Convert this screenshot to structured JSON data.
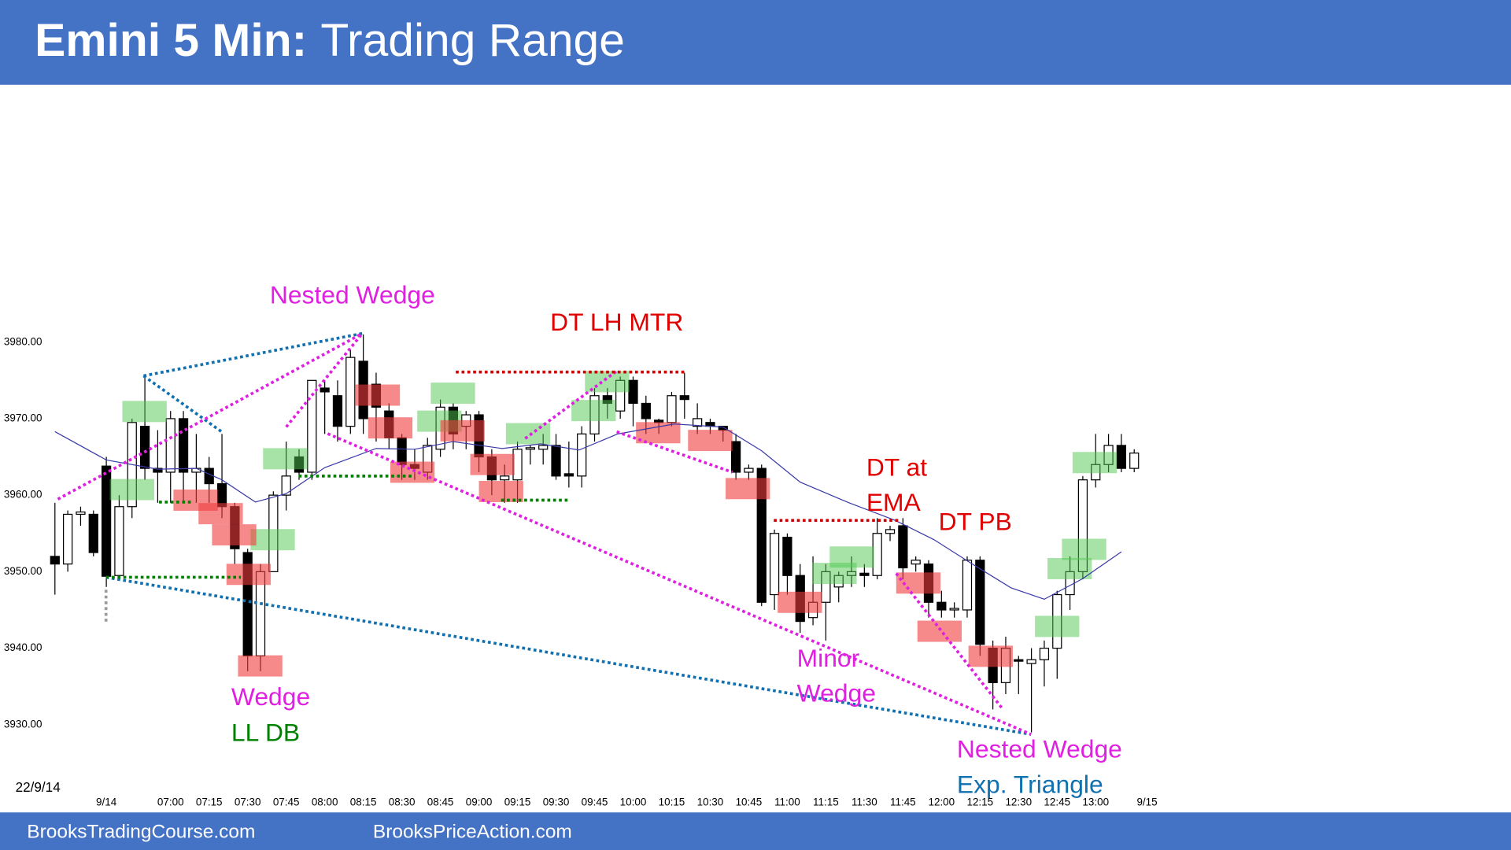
{
  "header": {
    "title": "Emini 5 Min:",
    "subtitle": "Trading Range"
  },
  "footer": {
    "left": "BrooksTradingCourse.com",
    "right": "BrooksPriceAction.com"
  },
  "chart_data": {
    "type": "candlestick",
    "date_label": "22/9/14",
    "x": [
      375,
      380,
      385,
      390,
      395,
      400,
      405,
      410,
      415,
      420,
      425,
      430,
      435,
      440,
      445,
      450,
      455,
      460,
      465,
      470,
      475,
      480,
      485,
      490,
      495,
      500,
      505,
      510,
      515,
      520,
      525,
      530,
      535,
      540,
      545,
      550,
      555,
      560,
      565,
      570,
      575,
      580,
      585,
      590,
      595,
      600,
      605,
      610,
      615,
      620,
      625,
      630,
      635,
      640,
      645,
      650,
      655,
      660,
      665,
      670,
      675,
      680,
      685,
      690,
      695,
      700,
      705,
      710,
      715,
      720,
      725,
      730,
      735,
      740,
      745,
      750,
      755,
      760,
      765,
      770,
      775,
      780,
      785,
      790,
      795
    ],
    "open": [
      3952,
      3951,
      3957.5,
      3957.5,
      3963.8,
      3949.5,
      3958.5,
      3969,
      3963.5,
      3963,
      3970,
      3963,
      3963.5,
      3961.5,
      3958.5,
      3952.5,
      3939,
      3950,
      3960,
      3965,
      3963,
      3974,
      3973,
      3969,
      3977.5,
      3974.5,
      3971,
      3967.5,
      3964,
      3963,
      3966,
      3971.5,
      3969,
      3970.5,
      3965,
      3962,
      3962,
      3966,
      3966,
      3966.5,
      3962.8,
      3962.5,
      3968,
      3973,
      3971,
      3975,
      3972,
      3969.8,
      3969.5,
      3973,
      3969,
      3969.5,
      3969,
      3967,
      3963,
      3963.5,
      3947,
      3954.5,
      3949.5,
      3944,
      3946,
      3948,
      3949.5,
      3949.8,
      3949.5,
      3955,
      3956,
      3951,
      3951,
      3946,
      3945,
      3945,
      3951.5,
      3940,
      3935.5,
      3938.5,
      3938,
      3938.5,
      3940,
      3947,
      3950,
      3962,
      3964,
      3966.5,
      3963.5
    ],
    "high": [
      3959,
      3958,
      3958.5,
      3958,
      3965,
      3960,
      3970,
      3975.5,
      3968.5,
      3971,
      3971,
      3968,
      3965,
      3968,
      3959,
      3953,
      3951,
      3960.5,
      3967,
      3966,
      3975,
      3975,
      3975,
      3979,
      3981,
      3976,
      3972,
      3968,
      3966,
      3967.5,
      3972.5,
      3972,
      3971,
      3971,
      3966,
      3964,
      3967,
      3966.5,
      3968,
      3968,
      3967,
      3969,
      3974,
      3974,
      3975.5,
      3975.5,
      3973,
      3970,
      3973.5,
      3976,
      3972,
      3970,
      3969,
      3968,
      3964,
      3964,
      3955.5,
      3955,
      3951,
      3952,
      3951,
      3950,
      3952,
      3951,
      3957,
      3956,
      3957,
      3952,
      3951.5,
      3947.5,
      3946,
      3952,
      3952,
      3941,
      3941.5,
      3939,
      3940,
      3941,
      3947.5,
      3952,
      3962.5,
      3968,
      3968,
      3968,
      3966
    ],
    "low": [
      3947,
      3950,
      3956,
      3952,
      3948,
      3949,
      3957,
      3962,
      3959,
      3959,
      3959,
      3959,
      3959,
      3957,
      3951,
      3937,
      3937,
      3950,
      3958,
      3962,
      3962,
      3968,
      3967,
      3968,
      3968,
      3967,
      3966,
      3962,
      3962,
      3962,
      3965,
      3966,
      3966,
      3963,
      3960,
      3959,
      3959,
      3964,
      3964,
      3962,
      3961,
      3961,
      3967,
      3970,
      3970,
      3969,
      3968,
      3968,
      3969,
      3970,
      3968,
      3968,
      3967,
      3962,
      3962,
      3945.5,
      3945,
      3947,
      3942,
      3943,
      3941,
      3946,
      3948,
      3948,
      3949,
      3954,
      3949,
      3950,
      3944,
      3944,
      3944,
      3944,
      3939,
      3932,
      3934,
      3934,
      3929,
      3935,
      3936,
      3945,
      3949,
      3961,
      3963,
      3963,
      3963
    ],
    "close": [
      3951,
      3957.5,
      3957.8,
      3952.5,
      3949.4,
      3958.5,
      3969.5,
      3963.5,
      3963,
      3970,
      3963,
      3963.5,
      3961.5,
      3958.5,
      3953,
      3939,
      3950,
      3960,
      3962.5,
      3963,
      3975,
      3973.5,
      3969,
      3978,
      3970,
      3971.5,
      3967.5,
      3964,
      3963.5,
      3966.5,
      3971.5,
      3968,
      3970.5,
      3965,
      3962,
      3962.5,
      3966,
      3966.2,
      3966.5,
      3962.5,
      3962.5,
      3968,
      3973,
      3972,
      3975,
      3972,
      3970,
      3969.5,
      3973,
      3972.5,
      3970,
      3969,
      3968.5,
      3963,
      3963.5,
      3946,
      3955,
      3949.5,
      3943.5,
      3946,
      3950,
      3949.5,
      3950,
      3949.5,
      3955,
      3955.5,
      3950.5,
      3951.5,
      3946,
      3945,
      3945.2,
      3951.5,
      3940.5,
      3935.5,
      3940,
      3938.3,
      3938.5,
      3940,
      3947,
      3950,
      3962,
      3964,
      3966.5,
      3963.5,
      3965.5
    ],
    "ema": {
      "color": "#3a3aa8",
      "x": [
        375,
        395,
        415,
        430,
        440,
        453,
        465,
        480,
        500,
        515,
        530,
        549,
        564,
        579,
        594,
        616,
        635,
        650,
        665,
        684,
        702,
        717,
        732,
        747,
        760,
        775,
        790
      ],
      "values": [
        3968.3,
        3964.6,
        3963.4,
        3963.5,
        3962,
        3959.1,
        3960.2,
        3963.6,
        3966.1,
        3966,
        3967,
        3966.1,
        3966.7,
        3965.9,
        3968,
        3969.3,
        3968.9,
        3965.8,
        3961.7,
        3959,
        3956.7,
        3954.2,
        3951,
        3947.9,
        3946.4,
        3949.1,
        3952.6
      ]
    },
    "xlim": [
      365,
      805
    ],
    "ylim": [
      3925,
      3985
    ],
    "xticks": [
      {
        "value": 395,
        "label": "9/14"
      },
      {
        "value": 420,
        "label": "07:00"
      },
      {
        "value": 435,
        "label": "07:15"
      },
      {
        "value": 450,
        "label": "07:30"
      },
      {
        "value": 465,
        "label": "07:45"
      },
      {
        "value": 480,
        "label": "08:00"
      },
      {
        "value": 495,
        "label": "08:15"
      },
      {
        "value": 510,
        "label": "08:30"
      },
      {
        "value": 525,
        "label": "08:45"
      },
      {
        "value": 540,
        "label": "09:00"
      },
      {
        "value": 555,
        "label": "09:15"
      },
      {
        "value": 570,
        "label": "09:30"
      },
      {
        "value": 585,
        "label": "09:45"
      },
      {
        "value": 600,
        "label": "10:00"
      },
      {
        "value": 615,
        "label": "10:15"
      },
      {
        "value": 630,
        "label": "10:30"
      },
      {
        "value": 645,
        "label": "10:45"
      },
      {
        "value": 660,
        "label": "11:00"
      },
      {
        "value": 675,
        "label": "11:15"
      },
      {
        "value": 690,
        "label": "11:30"
      },
      {
        "value": 705,
        "label": "11:45"
      },
      {
        "value": 720,
        "label": "12:00"
      },
      {
        "value": 735,
        "label": "12:15"
      },
      {
        "value": 750,
        "label": "12:30"
      },
      {
        "value": 765,
        "label": "12:45"
      },
      {
        "value": 780,
        "label": "13:00"
      },
      {
        "value": 800,
        "label": "9/15"
      }
    ],
    "yticks": [
      {
        "value": 3930,
        "label": "3930.00"
      },
      {
        "value": 3940,
        "label": "3940.00"
      },
      {
        "value": 3950,
        "label": "3950.00"
      },
      {
        "value": 3960,
        "label": "3960.00"
      },
      {
        "value": 3970,
        "label": "3970.00"
      },
      {
        "value": 3980,
        "label": "3980.00"
      }
    ],
    "annotations": [
      {
        "text": "Nested Wedge",
        "color": "#e020e0"
      },
      {
        "text": "DT LH MTR",
        "color": "#e00000"
      },
      {
        "text": "Wedge",
        "color": "#e020e0"
      },
      {
        "text": "LL DB",
        "color": "#008000"
      },
      {
        "text": "DT at",
        "color": "#e00000"
      },
      {
        "text": "EMA",
        "color": "#e00000"
      },
      {
        "text": "DT PB",
        "color": "#e00000"
      },
      {
        "text": "Minor",
        "color": "#e020e0"
      },
      {
        "text": "Wedge",
        "color": "#e020e0"
      },
      {
        "text": "Nested Wedge",
        "color": "#e020e0"
      },
      {
        "text": "Exp. Triangle",
        "color": "#1070b0"
      }
    ]
  }
}
